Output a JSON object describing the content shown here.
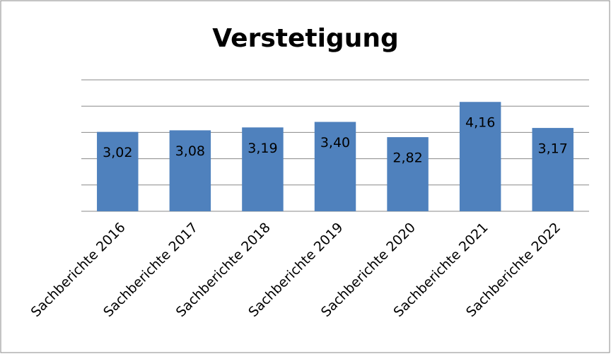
{
  "chart_data": {
    "type": "bar",
    "title": "Verstetigung",
    "categories": [
      "Sachberichte 2016",
      "Sachberichte 2017",
      "Sachberichte 2018",
      "Sachberichte 2019",
      "Sachberichte 2020",
      "Sachberichte 2021",
      "Sachberichte 2022"
    ],
    "values": [
      3.02,
      3.08,
      3.19,
      3.4,
      2.82,
      4.16,
      3.17
    ],
    "value_labels": [
      "3,02",
      "3,08",
      "3,19",
      "3,40",
      "2,82",
      "4,16",
      "3,17"
    ],
    "color": "#4f81bd",
    "ylim": [
      0,
      5
    ],
    "yticks": [
      0,
      1,
      2,
      3,
      4,
      5
    ],
    "grid": true
  }
}
